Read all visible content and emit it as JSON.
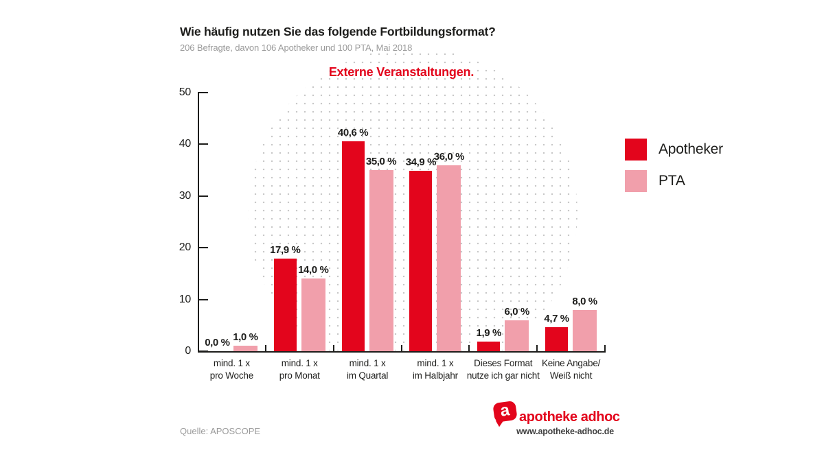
{
  "header": {
    "title": "Wie häufig nutzen Sie das folgende Fortbildungsformat?",
    "subtitle": "206 Befragte, davon 106 Apotheker und 100 PTA, Mai 2018"
  },
  "chart_title": "Externe Veranstaltungen.",
  "source": "Quelle: APOSCOPE",
  "legend": [
    {
      "label": "Apotheker",
      "color": "#e3051c"
    },
    {
      "label": "PTA",
      "color": "#f19fab"
    }
  ],
  "logo": {
    "icon_letter": "a",
    "brand": "apotheke adhoc",
    "url": "www.apotheke-adhoc.de"
  },
  "colors": {
    "apotheker_red": "#e3051c",
    "pta_pink": "#f19fab",
    "axis": "#1d1d1b",
    "muted_gray": "#9a9a9a",
    "dot_gray": "#c7c7c7"
  },
  "chart_data": {
    "type": "bar",
    "title": "Externe Veranstaltungen.",
    "categories": [
      [
        "mind. 1 x",
        "pro Woche"
      ],
      [
        "mind. 1 x",
        "pro Monat"
      ],
      [
        "mind. 1 x",
        "im Quartal"
      ],
      [
        "mind. 1 x",
        "im Halbjahr"
      ],
      [
        "Dieses Format",
        "nutze ich gar nicht"
      ],
      [
        "Keine Angabe/",
        "Weiß nicht"
      ]
    ],
    "series": [
      {
        "name": "Apotheker",
        "color": "#e3051c",
        "values": [
          0.0,
          17.9,
          40.6,
          34.9,
          1.9,
          4.7
        ],
        "labels": [
          "0,0 %",
          "17,9 %",
          "40,6 %",
          "34,9 %",
          "1,9 %",
          "4,7 %"
        ]
      },
      {
        "name": "PTA",
        "color": "#f19fab",
        "values": [
          1.0,
          14.0,
          35.0,
          36.0,
          6.0,
          8.0
        ],
        "labels": [
          "1,0 %",
          "14,0 %",
          "35,0 %",
          "36,0 %",
          "6,0 %",
          "8,0 %"
        ]
      }
    ],
    "xlabel": "",
    "ylabel": "",
    "ylim": [
      0,
      50
    ],
    "yticks": [
      0,
      10,
      20,
      30,
      40,
      50
    ],
    "grid": false,
    "legend_position": "right"
  }
}
